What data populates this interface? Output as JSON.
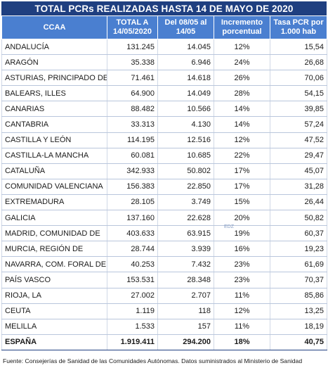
{
  "title": "TOTAL PCRs REALIZADAS HASTA 14 DE MAYO DE 2020",
  "headers": {
    "ccaa": "CCAA",
    "total": [
      "TOTAL A",
      "14/05/2020"
    ],
    "del": [
      "Del 08/05 al",
      "14/05"
    ],
    "incremento": [
      "Incremento",
      "porcentual"
    ],
    "tasa": [
      "Tasa PCR por",
      "1.000 hab"
    ]
  },
  "rows": [
    [
      "ANDALUCÍA",
      "131.245",
      "14.045",
      "12%",
      "15,54"
    ],
    [
      "ARAGÓN",
      "35.338",
      "6.946",
      "24%",
      "26,68"
    ],
    [
      "ASTURIAS, PRINCIPADO DE",
      "71.461",
      "14.618",
      "26%",
      "70,06"
    ],
    [
      "BALEARS, ILLES",
      "64.900",
      "14.049",
      "28%",
      "54,15"
    ],
    [
      "CANARIAS",
      "88.482",
      "10.566",
      "14%",
      "39,85"
    ],
    [
      "CANTABRIA",
      "33.313",
      "4.130",
      "14%",
      "57,24"
    ],
    [
      "CASTILLA Y LEÓN",
      "114.195",
      "12.516",
      "12%",
      "47,52"
    ],
    [
      "CASTILLA-LA MANCHA",
      "60.081",
      "10.685",
      "22%",
      "29,47"
    ],
    [
      "CATALUÑA",
      "342.933",
      "50.802",
      "17%",
      "45,07"
    ],
    [
      "COMUNIDAD VALENCIANA",
      "156.383",
      "22.850",
      "17%",
      "31,28"
    ],
    [
      "EXTREMADURA",
      "28.105",
      "3.749",
      "15%",
      "26,44"
    ],
    [
      "GALICIA",
      "137.160",
      "22.628",
      "20%",
      "50,82"
    ],
    [
      "MADRID, COMUNIDAD DE",
      "403.633",
      "63.915",
      "19%",
      "60,37"
    ],
    [
      "MURCIA, REGIÓN DE",
      "28.744",
      "3.939",
      "16%",
      "19,23"
    ],
    [
      "NAVARRA, COM. FORAL DE",
      "40.253",
      "7.432",
      "23%",
      "61,69"
    ],
    [
      "PAÍS VASCO",
      "153.531",
      "28.348",
      "23%",
      "70,37"
    ],
    [
      "RIOJA, LA",
      "27.002",
      "2.707",
      "11%",
      "85,86"
    ],
    [
      "CEUTA",
      "1.119",
      "118",
      "12%",
      "13,25"
    ],
    [
      "MELILLA",
      "1.533",
      "157",
      "11%",
      "18,19"
    ]
  ],
  "total_row": [
    "ESPAÑA",
    "1.919.411",
    "294.200",
    "18%",
    "40,75"
  ],
  "watermark": "EDZ",
  "source": "Fuente: Consejerías de Sanidad de las Comunidades Autónomas. Datos suministrados al Ministerio de Sanidad"
}
